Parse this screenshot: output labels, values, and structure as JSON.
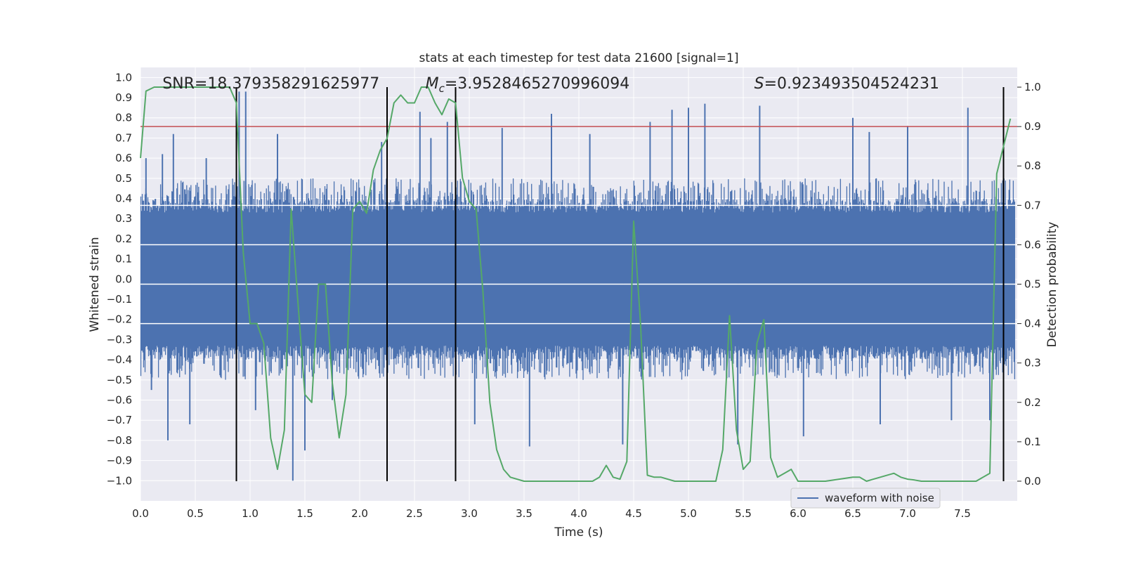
{
  "chart_data": {
    "type": "line",
    "title": "stats at each timestep for test data 21600 [signal=1]",
    "xlabel": "Time (s)",
    "ylabel": "Whitened strain",
    "y2label": "Detection probability",
    "xlim": [
      0.0,
      8.0
    ],
    "ylim": [
      -1.1,
      1.05
    ],
    "y2lim": [
      -0.05,
      1.05
    ],
    "xticks": [
      0.0,
      0.5,
      1.0,
      1.5,
      2.0,
      2.5,
      3.0,
      3.5,
      4.0,
      4.5,
      5.0,
      5.5,
      6.0,
      6.5,
      7.0,
      7.5
    ],
    "xtick_labels": [
      "0.0",
      "0.5",
      "1.0",
      "1.5",
      "2.0",
      "2.5",
      "3.0",
      "3.5",
      "4.0",
      "4.5",
      "5.0",
      "5.5",
      "6.0",
      "6.5",
      "7.0",
      "7.5"
    ],
    "yticks": [
      1.0,
      0.9,
      0.8,
      0.7,
      0.6,
      0.5,
      0.4,
      0.3,
      0.2,
      0.1,
      0.0,
      -0.1,
      -0.2,
      -0.3,
      -0.4,
      -0.5,
      -0.6,
      -0.7,
      -0.8,
      -0.9,
      -1.0
    ],
    "ytick_labels": [
      "1.0",
      "0.9",
      "0.8",
      "0.7",
      "0.6",
      "0.5",
      "0.4",
      "0.3",
      "0.2",
      "0.1",
      "0.0",
      "−0.1",
      "−0.2",
      "−0.3",
      "−0.4",
      "−0.5",
      "−0.6",
      "−0.7",
      "−0.8",
      "−0.9",
      "−1.0"
    ],
    "y2ticks": [
      1.0,
      0.9,
      0.8,
      0.7,
      0.6,
      0.5,
      0.4,
      0.3,
      0.2,
      0.1,
      0.0
    ],
    "y2tick_labels": [
      "1.0",
      "0.9",
      "0.8",
      "0.7",
      "0.6",
      "0.5",
      "0.4",
      "0.3",
      "0.2",
      "0.1",
      "0.0"
    ],
    "waveform": {
      "name": "waveform with noise",
      "color": "#4c72b0",
      "core_amplitude": 0.33,
      "typical_peak": 0.5,
      "peaks": [
        {
          "t": 0.05,
          "v": 0.6
        },
        {
          "t": 0.1,
          "v": -0.55
        },
        {
          "t": 0.2,
          "v": 0.62
        },
        {
          "t": 0.25,
          "v": -0.8
        },
        {
          "t": 0.3,
          "v": 0.72
        },
        {
          "t": 0.45,
          "v": -0.72
        },
        {
          "t": 0.6,
          "v": 0.6
        },
        {
          "t": 0.9,
          "v": 0.93
        },
        {
          "t": 0.96,
          "v": 0.93
        },
        {
          "t": 1.05,
          "v": -0.65
        },
        {
          "t": 1.25,
          "v": 0.72
        },
        {
          "t": 1.39,
          "v": -1.0
        },
        {
          "t": 1.5,
          "v": -0.85
        },
        {
          "t": 1.75,
          "v": -0.6
        },
        {
          "t": 2.2,
          "v": 0.68
        },
        {
          "t": 2.55,
          "v": 0.83
        },
        {
          "t": 2.65,
          "v": 0.7
        },
        {
          "t": 2.8,
          "v": 0.78
        },
        {
          "t": 3.05,
          "v": -0.72
        },
        {
          "t": 3.3,
          "v": 0.75
        },
        {
          "t": 3.55,
          "v": -0.83
        },
        {
          "t": 3.75,
          "v": 0.82
        },
        {
          "t": 4.1,
          "v": 0.72
        },
        {
          "t": 4.4,
          "v": -0.82
        },
        {
          "t": 4.65,
          "v": 0.78
        },
        {
          "t": 4.85,
          "v": 0.84
        },
        {
          "t": 5.0,
          "v": 0.85
        },
        {
          "t": 5.15,
          "v": 0.87
        },
        {
          "t": 5.65,
          "v": 0.86
        },
        {
          "t": 5.45,
          "v": -0.82
        },
        {
          "t": 6.05,
          "v": -0.78
        },
        {
          "t": 6.5,
          "v": 0.8
        },
        {
          "t": 6.65,
          "v": 0.73
        },
        {
          "t": 6.75,
          "v": -0.72
        },
        {
          "t": 7.0,
          "v": 0.76
        },
        {
          "t": 7.55,
          "v": 0.85
        },
        {
          "t": 7.4,
          "v": -0.7
        },
        {
          "t": 7.75,
          "v": -0.7
        }
      ]
    },
    "threshold": {
      "value": 0.9,
      "axis": "y2",
      "color": "#c44e52"
    },
    "vlines": [
      0.875,
      2.25,
      2.875,
      7.875
    ],
    "vline_color": "#000000",
    "probability": {
      "color": "#55a868",
      "t": [
        0.0,
        0.05,
        0.125,
        0.25,
        0.375,
        0.5,
        0.625,
        0.75,
        0.813,
        0.875,
        0.938,
        1.0,
        1.063,
        1.125,
        1.188,
        1.25,
        1.313,
        1.375,
        1.438,
        1.5,
        1.563,
        1.625,
        1.688,
        1.75,
        1.813,
        1.875,
        1.938,
        2.0,
        2.063,
        2.125,
        2.188,
        2.25,
        2.313,
        2.375,
        2.438,
        2.5,
        2.563,
        2.625,
        2.688,
        2.75,
        2.813,
        2.875,
        2.938,
        3.0,
        3.063,
        3.125,
        3.188,
        3.25,
        3.313,
        3.375,
        3.5,
        3.75,
        4.0,
        4.125,
        4.188,
        4.25,
        4.313,
        4.375,
        4.438,
        4.5,
        4.563,
        4.625,
        4.688,
        4.75,
        4.875,
        5.0,
        5.125,
        5.25,
        5.313,
        5.375,
        5.438,
        5.5,
        5.563,
        5.625,
        5.688,
        5.75,
        5.813,
        5.875,
        5.938,
        6.0,
        6.25,
        6.5,
        6.563,
        6.625,
        6.688,
        6.75,
        6.875,
        6.938,
        7.0,
        7.063,
        7.125,
        7.25,
        7.375,
        7.5,
        7.625,
        7.75,
        7.813,
        7.875,
        7.938
      ],
      "p": [
        0.82,
        0.99,
        1.0,
        1.0,
        1.0,
        1.0,
        1.0,
        1.0,
        1.0,
        0.96,
        0.58,
        0.4,
        0.4,
        0.35,
        0.11,
        0.03,
        0.13,
        0.69,
        0.45,
        0.22,
        0.2,
        0.5,
        0.5,
        0.25,
        0.11,
        0.22,
        0.69,
        0.71,
        0.68,
        0.79,
        0.84,
        0.87,
        0.96,
        0.98,
        0.96,
        0.96,
        1.0,
        1.0,
        0.96,
        0.93,
        0.97,
        0.96,
        0.77,
        0.71,
        0.69,
        0.48,
        0.2,
        0.08,
        0.03,
        0.01,
        0.0,
        0.0,
        0.0,
        0.0,
        0.01,
        0.04,
        0.01,
        0.005,
        0.05,
        0.66,
        0.4,
        0.015,
        0.01,
        0.01,
        0.0,
        0.0,
        0.0,
        0.0,
        0.08,
        0.42,
        0.13,
        0.03,
        0.05,
        0.35,
        0.41,
        0.06,
        0.01,
        0.02,
        0.03,
        0.0,
        0.0,
        0.01,
        0.01,
        0.0,
        0.005,
        0.01,
        0.02,
        0.01,
        0.005,
        0.003,
        0.0,
        0.0,
        0.0,
        0.0,
        0.0,
        0.02,
        0.78,
        0.85,
        0.92
      ]
    },
    "annotations": [
      {
        "text": "SNR=18.379358291625977",
        "t": 0.2,
        "y": 0.97
      },
      {
        "prefix": "M",
        "sub": "c",
        "text": "=3.9528465270996094",
        "t": 2.6,
        "y": 0.97
      },
      {
        "prefix": "S",
        "text": "=0.923493504524231",
        "t": 5.6,
        "y": 0.97
      }
    ],
    "legend": {
      "entries": [
        "waveform with noise"
      ],
      "placement": "bottom-right"
    },
    "grid": true,
    "background": "#eaeaf2"
  }
}
